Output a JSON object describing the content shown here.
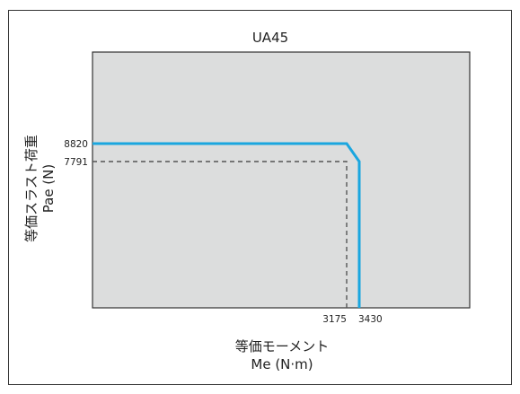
{
  "chart_data": {
    "type": "line",
    "title": "UA45",
    "xlabel_line1": "等価モーメント",
    "xlabel_line2": "Me (N·m)",
    "ylabel_line1": "等価スラスト荷重",
    "ylabel_line2": "Pae (N)",
    "x_ticks": [
      {
        "value": 3175,
        "label": "3175"
      },
      {
        "value": 3430,
        "label": "3430"
      }
    ],
    "y_ticks": [
      {
        "value": 8820,
        "label": "8820"
      },
      {
        "value": 7791,
        "label": "7791"
      }
    ],
    "series": [
      {
        "style": "solid",
        "color": "#1aa6df",
        "points": [
          [
            0,
            8820
          ],
          [
            3175,
            8820
          ],
          [
            3430,
            7791
          ],
          [
            3430,
            0
          ]
        ]
      },
      {
        "style": "dashed",
        "color": "#555555",
        "points": [
          [
            0,
            7791
          ],
          [
            3175,
            7791
          ],
          [
            3175,
            0
          ]
        ]
      }
    ],
    "plot_background": "#dcdddd",
    "grid": false
  }
}
